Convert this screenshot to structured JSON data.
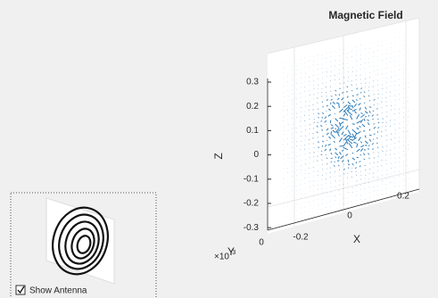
{
  "window": {
    "title": "Magnetic Field",
    "axes": {
      "z_label": "Z",
      "z_ticks": [
        "0.3",
        "0.2",
        "0.1",
        "0",
        "-0.1",
        "-0.2",
        "-0.3"
      ],
      "x_label": "X",
      "x_ticks": [
        "-0.2",
        "0",
        "0.2"
      ],
      "y_label": "Y",
      "y_ticks": [
        "0"
      ],
      "y_exponent": "×10",
      "y_exponent_power": "-3"
    },
    "checkbox": {
      "label": "Show Antenna",
      "checked": true
    }
  }
}
